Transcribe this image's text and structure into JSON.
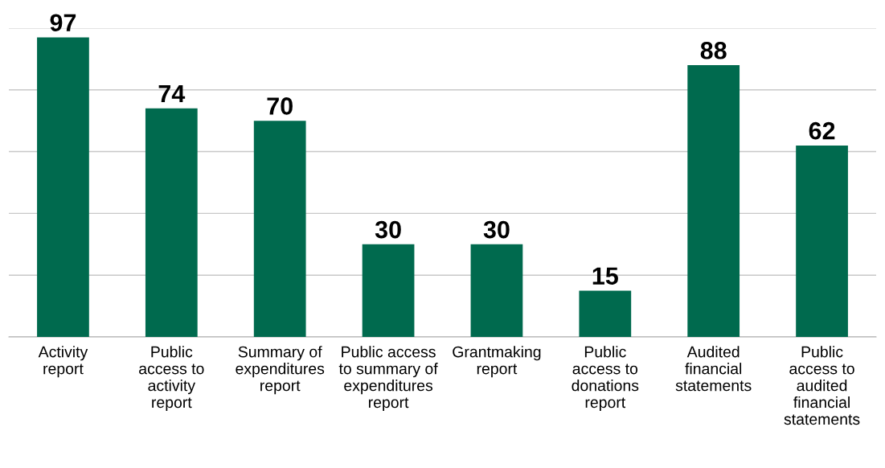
{
  "chart_data": {
    "type": "bar",
    "categories": [
      "Activity\nreport",
      "Public\naccess to\nactivity\nreport",
      "Summary of\nexpenditures\nreport",
      "Public access\nto summary of\nexpenditures\nreport",
      "Grantmaking\nreport",
      "Public\naccess to\ndonations\nreport",
      "Audited\nfinancial\nstatements",
      "Public\naccess to\naudited\nfinancial\nstatements"
    ],
    "values": [
      97,
      74,
      70,
      30,
      30,
      15,
      88,
      62
    ],
    "color": "#006a4e",
    "data_labels": true,
    "ylim": [
      0,
      100
    ],
    "yticks": [
      {
        "value": 0,
        "label": null
      },
      {
        "value": 20,
        "label": null
      },
      {
        "value": 40,
        "label": null
      },
      {
        "value": 60,
        "label": null
      },
      {
        "value": 80,
        "label": null
      },
      {
        "value": 100,
        "label": null
      }
    ],
    "grid": "y",
    "tick_labels": "x"
  }
}
